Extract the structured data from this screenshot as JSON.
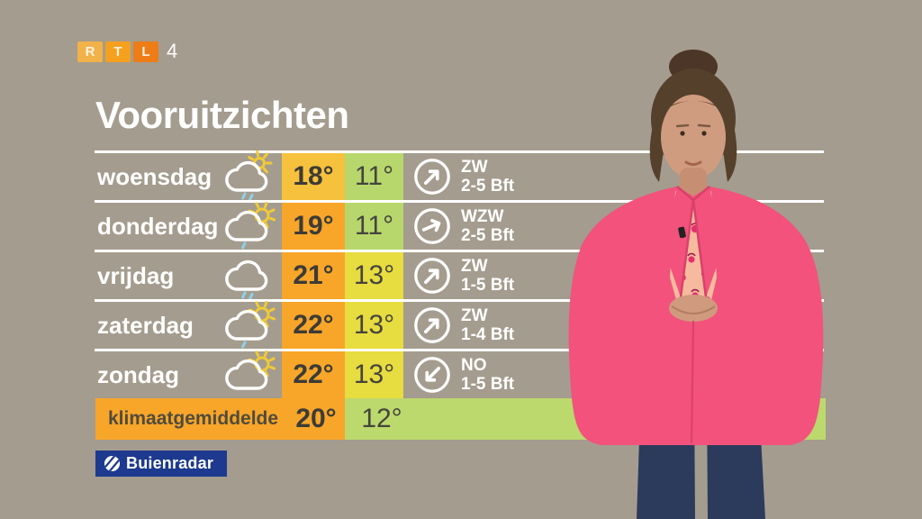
{
  "background_color": "#a49c8e",
  "channel_logo": {
    "letters": [
      "R",
      "T",
      "L"
    ],
    "box_colors": [
      "#f1b24a",
      "#f5a01f",
      "#ee7c17"
    ],
    "number": "4"
  },
  "title": "Vooruitzichten",
  "forecast_table": {
    "rows": [
      {
        "day": "woensdag",
        "icon": {
          "name": "sun-cloud-light-rain-icon",
          "sun": "small",
          "drops": 2
        },
        "max": "18°",
        "min": "11°",
        "max_color": "#f6c13c",
        "min_color": "#b7d76c",
        "wind": {
          "dir": "ZW",
          "force": "2-5 Bft",
          "arrow_deg": 0,
          "arrow_name": "wind-arrow-ne"
        }
      },
      {
        "day": "donderdag",
        "icon": {
          "name": "sun-cloud-drizzle-icon",
          "sun": "big",
          "drops": 1
        },
        "max": "19°",
        "min": "11°",
        "max_color": "#f7a62a",
        "min_color": "#b7d76c",
        "wind": {
          "dir": "WZW",
          "force": "2-5 Bft",
          "arrow_deg": 22,
          "arrow_name": "wind-arrow-ene"
        }
      },
      {
        "day": "vrijdag",
        "icon": {
          "name": "cloud-rain-icon",
          "sun": "none",
          "drops": 2
        },
        "max": "21°",
        "min": "13°",
        "max_color": "#f7a62a",
        "min_color": "#e7dc40",
        "wind": {
          "dir": "ZW",
          "force": "1-5 Bft",
          "arrow_deg": 0,
          "arrow_name": "wind-arrow-ne"
        }
      },
      {
        "day": "zaterdag",
        "icon": {
          "name": "sun-cloud-drizzle-icon",
          "sun": "big",
          "drops": 1
        },
        "max": "22°",
        "min": "13°",
        "max_color": "#f7a62a",
        "min_color": "#e7dc40",
        "wind": {
          "dir": "ZW",
          "force": "1-4 Bft",
          "arrow_deg": 0,
          "arrow_name": "wind-arrow-ne"
        }
      },
      {
        "day": "zondag",
        "icon": {
          "name": "sun-cloud-icon",
          "sun": "big",
          "drops": 0
        },
        "max": "22°",
        "min": "13°",
        "max_color": "#f7a62a",
        "min_color": "#e7dc40",
        "wind": {
          "dir": "NO",
          "force": "1-5 Bft",
          "arrow_deg": 180,
          "arrow_name": "wind-arrow-sw"
        }
      }
    ],
    "climate_row": {
      "label": "klimaatgemiddelde",
      "max": "20°",
      "min": "12°",
      "max_color": "#f7a62a",
      "min_color": "#bcd96d"
    }
  },
  "branding": {
    "text": "Buienradar",
    "bg_color": "#1d3a8e"
  }
}
